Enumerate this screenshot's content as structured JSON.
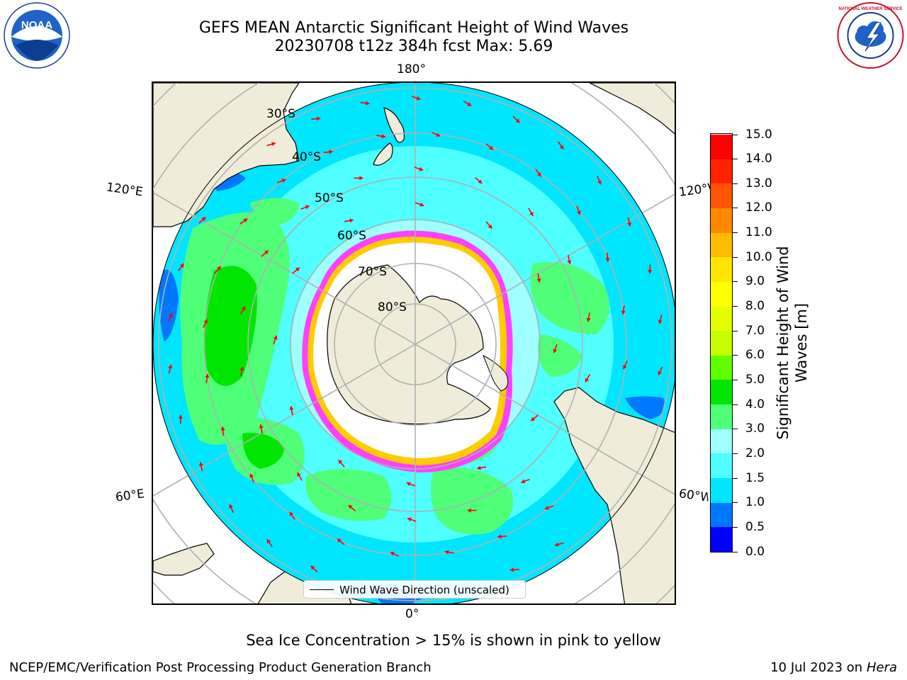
{
  "header": {
    "title_line1": "GEFS MEAN Antarctic Significant Height of Wind Waves",
    "title_line2": "20230708 t12z 384h fcst   Max: 5.69"
  },
  "logos": {
    "left": "NOAA",
    "right": "NATIONAL WEATHER SERVICE"
  },
  "map": {
    "longitude_labels": {
      "top": "180°",
      "bottom": "0°",
      "upper_left": "120°E",
      "upper_right": "120°W",
      "lower_left": "60°E",
      "lower_right": "60°W"
    },
    "latitude_labels": [
      "30°S",
      "40°S",
      "50°S",
      "60°S",
      "70°S",
      "80°S"
    ],
    "legend": "Wind Wave Direction (unscaled)",
    "colors": {
      "land": "#efedda",
      "ice_free_sea": "#ffffff",
      "arrows": "#ff0000",
      "graticule": "#b0b0b0"
    }
  },
  "colorbar": {
    "title": "Significant Height of Wind Waves [m]",
    "ticks": [
      "0.0",
      "0.5",
      "1.0",
      "1.5",
      "2.0",
      "3.0",
      "4.0",
      "5.0",
      "6.0",
      "7.0",
      "8.0",
      "9.0",
      "10.0",
      "11.0",
      "12.0",
      "13.0",
      "14.0",
      "15.0"
    ],
    "colors": [
      "#0000ff",
      "#0077ff",
      "#00e6ff",
      "#50ffff",
      "#a0ffff",
      "#50ff78",
      "#00e600",
      "#60ff00",
      "#c8ff00",
      "#e6ff00",
      "#ffff00",
      "#ffe600",
      "#ffbb00",
      "#ff8800",
      "#ff5500",
      "#ff2200",
      "#ff0000"
    ]
  },
  "footer": {
    "note": "Sea Ice Concentration > 15% is shown in pink to yellow",
    "credit": "NCEP/EMC/Verification Post Processing Product Generation Branch",
    "date_prefix": "10 Jul 2023 on",
    "date_machine": "Hera"
  }
}
